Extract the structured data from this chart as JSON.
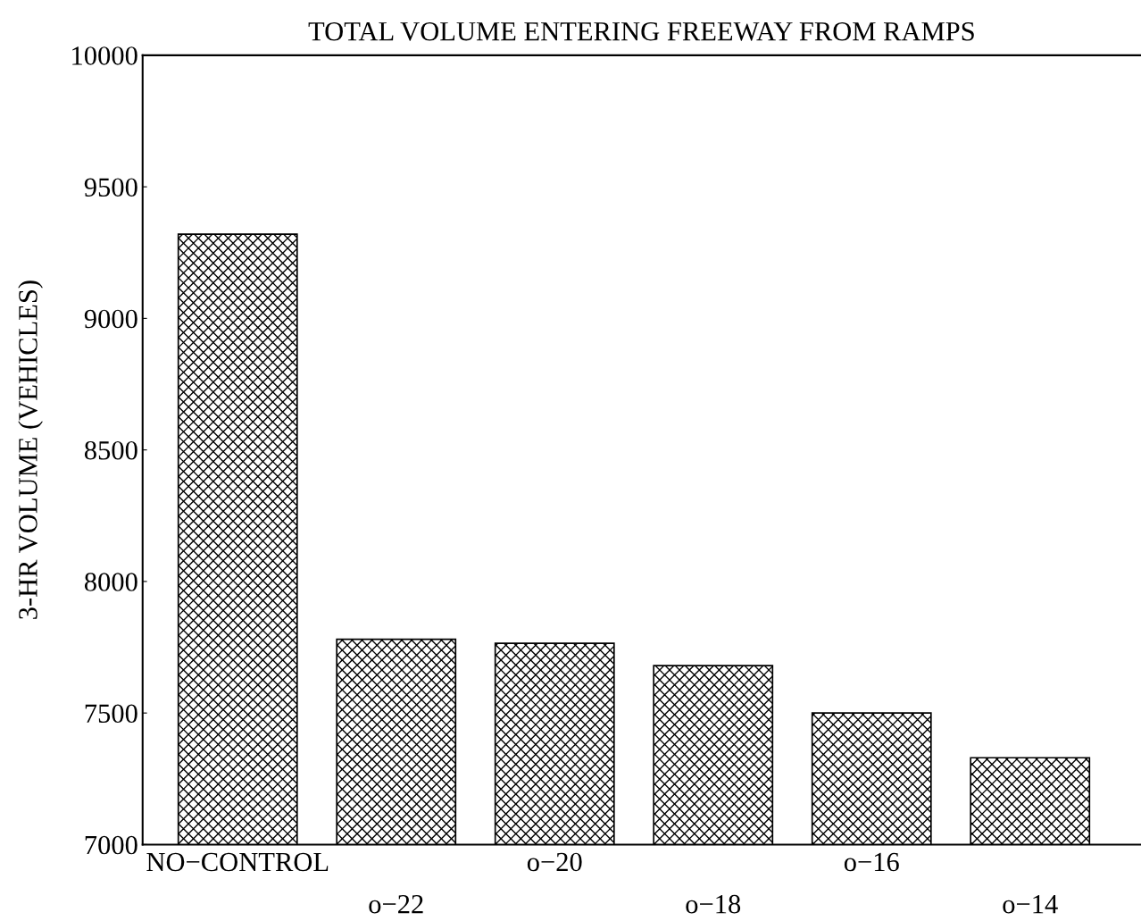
{
  "chart_data": {
    "type": "bar",
    "title": "TOTAL VOLUME ENTERING FREEWAY FROM RAMPS",
    "ylabel": "3-HR VOLUME (VEHICLES)",
    "categories": [
      "NO−CONTROL",
      "o−22",
      "o−20",
      "o−18",
      "o−16",
      "o−14"
    ],
    "values": [
      9320,
      7780,
      7765,
      7680,
      7500,
      7330
    ],
    "color": "#000000",
    "ylim": [
      7000,
      10000
    ],
    "yticks": [
      7000,
      7500,
      8000,
      8500,
      9000,
      9500,
      10000
    ],
    "grid": false
  }
}
